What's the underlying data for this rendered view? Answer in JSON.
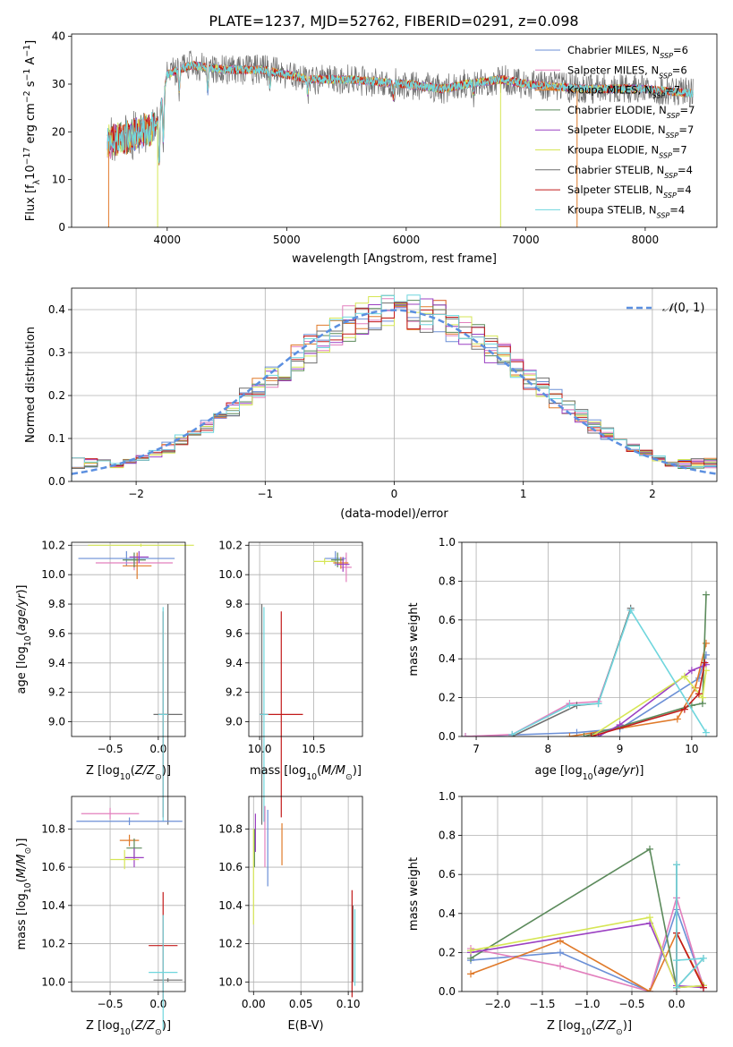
{
  "figure": {
    "title": "PLATE=1237, MJD=52762, FIBERID=0291, z=0.098"
  },
  "legend_labels": [
    "Chabrier MILES, N",
    "Salpeter MILES, N",
    "Kroupa MILES, N",
    "Chabrier ELODIE, N",
    "Salpeter ELODIE, N",
    "Kroupa ELODIE, N",
    "Chabrier STELIB, N",
    "Salpeter STELIB, N",
    "Kroupa STELIB, N"
  ],
  "legend_values": [
    "6",
    "6",
    "7",
    "7",
    "7",
    "7",
    "4",
    "4",
    "4"
  ],
  "colors": [
    "#6b8fd6",
    "#e27fbd",
    "#e07a2a",
    "#5b8a5b",
    "#9b40c2",
    "#d6e655",
    "#6f6f6f",
    "#c21b1b",
    "#6fd6dd"
  ],
  "chart_data": [
    {
      "type": "line",
      "title": "PLATE=1237, MJD=52762, FIBERID=0291, z=0.098",
      "xlabel": "wavelength [Angstrom, rest frame]",
      "ylabel_parts": [
        "Flux [f",
        "λ",
        "10",
        "−17",
        " erg cm",
        "−2",
        " s",
        "−1",
        " A",
        "−1",
        "]"
      ],
      "xlim": [
        3200,
        8600
      ],
      "ylim": [
        0,
        40.5
      ],
      "xticks": [
        4000,
        5000,
        6000,
        7000,
        8000
      ],
      "yticks": [
        0,
        10,
        20,
        30,
        40
      ],
      "spectrum_range": [
        3500,
        8400
      ],
      "series": [
        {
          "name": "Chabrier MILES, NSSP=6"
        },
        {
          "name": "Salpeter MILES, NSSP=6"
        },
        {
          "name": "Kroupa MILES, NSSP=7"
        },
        {
          "name": "Chabrier ELODIE, NSSP=7"
        },
        {
          "name": "Salpeter ELODIE, NSSP=7"
        },
        {
          "name": "Kroupa ELODIE, NSSP=7"
        },
        {
          "name": "Chabrier STELIB, NSSP=4"
        },
        {
          "name": "Salpeter STELIB, NSSP=4"
        },
        {
          "name": "Kroupa STELIB, NSSP=4"
        }
      ],
      "continuum_points": [
        [
          3500,
          18
        ],
        [
          3700,
          19
        ],
        [
          3900,
          21
        ],
        [
          4000,
          32
        ],
        [
          4200,
          34
        ],
        [
          4500,
          33
        ],
        [
          4800,
          33
        ],
        [
          5000,
          32
        ],
        [
          5200,
          31
        ],
        [
          5500,
          31
        ],
        [
          6000,
          30
        ],
        [
          6300,
          29
        ],
        [
          6500,
          30
        ],
        [
          6800,
          31
        ],
        [
          7000,
          30
        ],
        [
          7500,
          29
        ],
        [
          8000,
          29
        ],
        [
          8400,
          28
        ]
      ],
      "absorption_lines": [
        [
          3933,
          12
        ],
        [
          3968,
          10
        ],
        [
          4101,
          4
        ],
        [
          4340,
          5
        ],
        [
          4861,
          3
        ],
        [
          5175,
          3
        ],
        [
          5893,
          3
        ],
        [
          6563,
          2
        ]
      ]
    },
    {
      "type": "histogram",
      "xlabel": "(data-model)/error",
      "ylabel": "Normed distribution",
      "xlim": [
        -2.5,
        2.5
      ],
      "ylim": [
        0,
        0.45
      ],
      "xticks": [
        -2,
        -1,
        0,
        1,
        2
      ],
      "yticks": [
        0.0,
        0.1,
        0.2,
        0.3,
        0.4
      ],
      "legend": "N(0,1)",
      "bins": [
        -2.5,
        -2.4,
        -2.3,
        -2.2,
        -2.1,
        -2.0,
        -1.9,
        -1.8,
        -1.7,
        -1.6,
        -1.5,
        -1.4,
        -1.3,
        -1.2,
        -1.1,
        -1.0,
        -0.9,
        -0.8,
        -0.7,
        -0.6,
        -0.5,
        -0.4,
        -0.3,
        -0.2,
        -0.1,
        0.0,
        0.1,
        0.2,
        0.3,
        0.4,
        0.5,
        0.6,
        0.7,
        0.8,
        0.9,
        1.0,
        1.1,
        1.2,
        1.3,
        1.4,
        1.5,
        1.6,
        1.7,
        1.8,
        1.9,
        2.0,
        2.1,
        2.2,
        2.3,
        2.4,
        2.5
      ]
    },
    {
      "type": "errorbar",
      "xlabel": "Z [log10(Z/Z⊙)]",
      "ylabel": "age [log10(age/yr)]",
      "xlim": [
        -0.9,
        0.28
      ],
      "ylim": [
        8.9,
        10.22
      ],
      "xticks": [
        -0.5,
        0.0
      ],
      "yticks": [
        9.0,
        9.2,
        9.4,
        9.6,
        9.8,
        10.0,
        10.2
      ],
      "points": [
        {
          "x": -0.33,
          "y": 10.11,
          "xerr": 0.5,
          "yerr": 0.05
        },
        {
          "x": -0.25,
          "y": 10.08,
          "xerr": 0.4,
          "yerr": 0.05
        },
        {
          "x": -0.22,
          "y": 10.06,
          "xerr": 0.15,
          "yerr": 0.09
        },
        {
          "x": -0.25,
          "y": 10.1,
          "xerr": 0.12,
          "yerr": 0.05
        },
        {
          "x": -0.2,
          "y": 10.12,
          "xerr": 0.1,
          "yerr": 0.04
        },
        {
          "x": -0.18,
          "y": 10.2,
          "xerr": 0.55,
          "yerr": 0.01
        },
        {
          "x": 0.1,
          "y": 9.05,
          "xerr": 0.15,
          "yerr": 0.75
        },
        {
          "x": 0.05,
          "y": 9.05,
          "xerr": 0.05,
          "yerr": 0.7
        },
        {
          "x": 0.05,
          "y": 9.05,
          "xerr": 0.05,
          "yerr": 0.73
        }
      ]
    },
    {
      "type": "errorbar",
      "xlabel": "mass [log10(M/M⊙)]",
      "xlim": [
        9.9,
        10.95
      ],
      "ylim": [
        8.9,
        10.22
      ],
      "xticks": [
        10.0,
        10.5
      ],
      "yticks": [
        9.0,
        9.2,
        9.4,
        9.6,
        9.8,
        10.0,
        10.2
      ],
      "points": [
        {
          "x": 10.7,
          "y": 10.11,
          "xerr": 0.1,
          "yerr": 0.05
        },
        {
          "x": 10.8,
          "y": 10.05,
          "xerr": 0.05,
          "yerr": 0.1
        },
        {
          "x": 10.75,
          "y": 10.08,
          "xerr": 0.07,
          "yerr": 0.04
        },
        {
          "x": 10.72,
          "y": 10.1,
          "xerr": 0.06,
          "yerr": 0.05
        },
        {
          "x": 10.77,
          "y": 10.07,
          "xerr": 0.06,
          "yerr": 0.05
        },
        {
          "x": 10.6,
          "y": 10.09,
          "xerr": 0.1,
          "yerr": 0.02
        },
        {
          "x": 10.02,
          "y": 9.05,
          "xerr": 0.02,
          "yerr": 0.75
        },
        {
          "x": 10.2,
          "y": 9.05,
          "xerr": 0.2,
          "yerr": 0.7
        },
        {
          "x": 10.04,
          "y": 9.05,
          "xerr": 0.04,
          "yerr": 0.73
        }
      ]
    },
    {
      "type": "line",
      "xlabel": "age [log10(age/yr)]",
      "ylabel": "mass weight",
      "xlim": [
        6.8,
        10.35
      ],
      "ylim": [
        0,
        1.0
      ],
      "xticks": [
        7,
        8,
        9,
        10
      ],
      "yticks": [
        0.0,
        0.2,
        0.4,
        0.6,
        0.8,
        1.0
      ]
    },
    {
      "type": "errorbar",
      "xlabel": "Z [log10(Z/Z⊙)]",
      "ylabel": "mass [log10(M/M⊙)]",
      "xlim": [
        -0.9,
        0.28
      ],
      "ylim": [
        9.95,
        10.97
      ],
      "xticks": [
        -0.5,
        0.0
      ],
      "yticks": [
        10.0,
        10.2,
        10.4,
        10.6,
        10.8
      ],
      "points": [
        {
          "x": -0.3,
          "y": 10.84,
          "xerr": 0.55,
          "yerr": 0.02
        },
        {
          "x": -0.5,
          "y": 10.88,
          "xerr": 0.3,
          "yerr": 0.03
        },
        {
          "x": -0.3,
          "y": 10.74,
          "xerr": 0.1,
          "yerr": 0.03
        },
        {
          "x": -0.25,
          "y": 10.7,
          "xerr": 0.08,
          "yerr": 0.05
        },
        {
          "x": -0.25,
          "y": 10.65,
          "xerr": 0.1,
          "yerr": 0.05
        },
        {
          "x": -0.35,
          "y": 10.64,
          "xerr": 0.15,
          "yerr": 0.05
        },
        {
          "x": 0.1,
          "y": 10.01,
          "xerr": 0.15,
          "yerr": 0.01
        },
        {
          "x": 0.05,
          "y": 10.19,
          "xerr": 0.15,
          "yerr": 0.28
        },
        {
          "x": 0.05,
          "y": 10.05,
          "xerr": 0.15,
          "yerr": 0.3
        }
      ]
    },
    {
      "type": "errorbar",
      "xlabel": "E(B-V)",
      "xlim": [
        -0.005,
        0.115
      ],
      "ylim": [
        9.95,
        10.97
      ],
      "xticks": [
        0.0,
        0.05,
        0.1
      ],
      "yticks": [
        10.0,
        10.2,
        10.4,
        10.6,
        10.8
      ],
      "points": [
        {
          "x": 0.015,
          "y": 10.7,
          "xerr": 0,
          "yerr": 0.2
        },
        {
          "x": 0.012,
          "y": 10.76,
          "xerr": 0,
          "yerr": 0.16
        },
        {
          "x": 0.03,
          "y": 10.72,
          "xerr": 0,
          "yerr": 0.11
        },
        {
          "x": 0.001,
          "y": 10.7,
          "xerr": 0,
          "yerr": 0.1
        },
        {
          "x": 0.002,
          "y": 10.78,
          "xerr": 0,
          "yerr": 0.1
        },
        {
          "x": 0.0,
          "y": 10.55,
          "xerr": 0,
          "yerr": 0.25
        },
        {
          "x": 0.105,
          "y": 10.2,
          "xerr": 0,
          "yerr": 0.2
        },
        {
          "x": 0.104,
          "y": 10.2,
          "xerr": 0,
          "yerr": 0.28
        },
        {
          "x": 0.107,
          "y": 10.18,
          "xerr": 0,
          "yerr": 0.2
        }
      ]
    },
    {
      "type": "line",
      "xlabel": "Z [log10(Z/Z⊙)]",
      "ylabel": "mass weight",
      "xlim": [
        -2.4,
        0.45
      ],
      "ylim": [
        0,
        1.0
      ],
      "xticks": [
        -2.0,
        -1.5,
        -1.0,
        -0.5,
        0.0
      ],
      "yticks": [
        0.0,
        0.2,
        0.4,
        0.6,
        0.8,
        1.0
      ]
    }
  ]
}
